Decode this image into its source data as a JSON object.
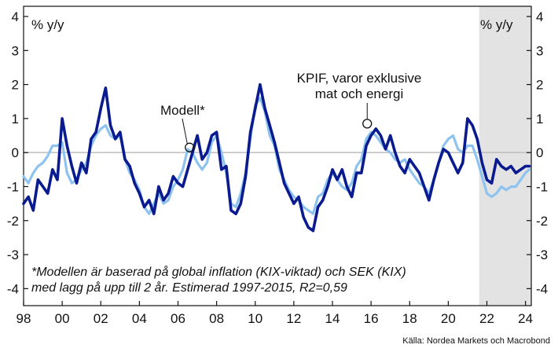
{
  "chart_data": {
    "type": "line",
    "title": "",
    "xlabel": "",
    "ylabel_left": "% y/y",
    "ylabel_right": "% y/y",
    "xlim": [
      1998,
      2024.3
    ],
    "ylim": [
      -4.5,
      4.3
    ],
    "x_ticks": [
      1998,
      2000,
      2002,
      2004,
      2006,
      2008,
      2010,
      2012,
      2014,
      2016,
      2018,
      2020,
      2022,
      2024
    ],
    "x_tick_labels": [
      "98",
      "00",
      "02",
      "04",
      "06",
      "08",
      "10",
      "12",
      "14",
      "16",
      "18",
      "20",
      "22",
      "24"
    ],
    "y_ticks": [
      4,
      3,
      2,
      1,
      0,
      -1,
      -2,
      -3,
      -4
    ],
    "y_tick_labels": [
      "4",
      "3",
      "2",
      "1",
      "0",
      "-1",
      "-2",
      "-3",
      "-4"
    ],
    "forecast_shade": [
      2021.6,
      2024.3
    ],
    "grid": false,
    "series": [
      {
        "name": "KPIF, varor exklusive mat och energi",
        "color": "#0a1a8f",
        "x": [
          1998.0,
          1998.25,
          1998.5,
          1998.75,
          1999.0,
          1999.25,
          1999.5,
          1999.75,
          2000.0,
          2000.25,
          2000.5,
          2000.75,
          2001.0,
          2001.25,
          2001.5,
          2001.75,
          2002.0,
          2002.25,
          2002.5,
          2002.75,
          2003.0,
          2003.25,
          2003.5,
          2003.75,
          2004.0,
          2004.25,
          2004.5,
          2004.75,
          2005.0,
          2005.25,
          2005.5,
          2005.75,
          2006.0,
          2006.25,
          2006.5,
          2006.75,
          2007.0,
          2007.25,
          2007.5,
          2007.75,
          2008.0,
          2008.25,
          2008.5,
          2008.75,
          2009.0,
          2009.25,
          2009.5,
          2009.75,
          2010.0,
          2010.25,
          2010.5,
          2010.75,
          2011.0,
          2011.25,
          2011.5,
          2011.75,
          2012.0,
          2012.25,
          2012.5,
          2012.75,
          2013.0,
          2013.25,
          2013.5,
          2013.75,
          2014.0,
          2014.25,
          2014.5,
          2014.75,
          2015.0,
          2015.25,
          2015.5,
          2015.75,
          2016.0,
          2016.25,
          2016.5,
          2016.75,
          2017.0,
          2017.25,
          2017.5,
          2017.75,
          2018.0,
          2018.25,
          2018.5,
          2018.75,
          2019.0,
          2019.25,
          2019.5,
          2019.75,
          2020.0,
          2020.25,
          2020.5,
          2020.75,
          2021.0,
          2021.25,
          2021.5,
          2021.75,
          2022.0,
          2022.25,
          2022.5,
          2022.75,
          2023.0,
          2023.25,
          2023.5,
          2023.75,
          2024.0,
          2024.2
        ],
        "values": [
          -1.5,
          -1.3,
          -1.7,
          -0.8,
          -1.0,
          -1.2,
          -0.5,
          -0.8,
          1.0,
          0.2,
          -0.4,
          -0.9,
          -0.3,
          -0.6,
          0.4,
          0.6,
          1.3,
          1.9,
          0.8,
          0.4,
          0.6,
          -0.2,
          -0.4,
          -0.9,
          -1.2,
          -1.6,
          -1.4,
          -1.8,
          -1.0,
          -1.4,
          -1.2,
          -0.7,
          -0.9,
          -1.0,
          -0.5,
          0.0,
          0.5,
          -0.2,
          0.0,
          0.5,
          0.6,
          -0.5,
          -0.4,
          -1.7,
          -1.8,
          -1.5,
          -0.7,
          0.6,
          1.3,
          2.0,
          1.3,
          0.8,
          0.3,
          -0.3,
          -0.9,
          -1.2,
          -1.5,
          -1.3,
          -1.9,
          -2.2,
          -2.3,
          -1.6,
          -1.4,
          -1.0,
          -0.5,
          -0.8,
          -0.5,
          -1.0,
          -1.3,
          -0.6,
          -0.6,
          0.2,
          0.5,
          0.7,
          0.5,
          0.1,
          0.5,
          0.0,
          -0.4,
          -0.6,
          -0.2,
          -0.4,
          -0.6,
          -1.0,
          -1.4,
          -0.8,
          -0.3,
          0.1,
          0.0,
          -0.3,
          -0.6,
          -0.3,
          1.0,
          0.8,
          0.4,
          -0.3,
          -0.8,
          -0.9,
          -0.2,
          -0.4,
          -0.5,
          -0.4,
          -0.6,
          -0.5,
          -0.4,
          -0.4
        ]
      },
      {
        "name": "Modell*",
        "color": "#8ec3ef",
        "x": [
          1998.0,
          1998.25,
          1998.5,
          1998.75,
          1999.0,
          1999.25,
          1999.5,
          1999.75,
          2000.0,
          2000.25,
          2000.5,
          2000.75,
          2001.0,
          2001.25,
          2001.5,
          2001.75,
          2002.0,
          2002.25,
          2002.5,
          2002.75,
          2003.0,
          2003.25,
          2003.5,
          2003.75,
          2004.0,
          2004.25,
          2004.5,
          2004.75,
          2005.0,
          2005.25,
          2005.5,
          2005.75,
          2006.0,
          2006.25,
          2006.5,
          2006.75,
          2007.0,
          2007.25,
          2007.5,
          2007.75,
          2008.0,
          2008.25,
          2008.5,
          2008.75,
          2009.0,
          2009.25,
          2009.5,
          2009.75,
          2010.0,
          2010.25,
          2010.5,
          2010.75,
          2011.0,
          2011.25,
          2011.5,
          2011.75,
          2012.0,
          2012.25,
          2012.5,
          2012.75,
          2013.0,
          2013.25,
          2013.5,
          2013.75,
          2014.0,
          2014.25,
          2014.5,
          2014.75,
          2015.0,
          2015.25,
          2015.5,
          2015.75,
          2016.0,
          2016.25,
          2016.5,
          2016.75,
          2017.0,
          2017.25,
          2017.5,
          2017.75,
          2018.0,
          2018.25,
          2018.5,
          2018.75,
          2019.0,
          2019.25,
          2019.5,
          2019.75,
          2020.0,
          2020.25,
          2020.5,
          2020.75,
          2021.0,
          2021.25,
          2021.5,
          2021.75,
          2022.0,
          2022.25,
          2022.5,
          2022.75,
          2023.0,
          2023.25,
          2023.5,
          2023.75,
          2024.0,
          2024.2
        ],
        "values": [
          -0.7,
          -0.9,
          -0.6,
          -0.4,
          -0.3,
          -0.1,
          0.2,
          0.2,
          0.3,
          -0.6,
          -0.9,
          -0.8,
          -0.5,
          -0.3,
          0.2,
          0.5,
          0.7,
          0.8,
          0.5,
          0.4,
          0.5,
          -0.2,
          -0.6,
          -0.8,
          -1.1,
          -1.6,
          -1.8,
          -1.5,
          -1.2,
          -1.5,
          -1.4,
          -1.0,
          -0.8,
          -0.5,
          0.1,
          0.0,
          -0.3,
          -0.5,
          -0.3,
          0.3,
          0.5,
          0.0,
          -0.6,
          -1.5,
          -1.6,
          -1.2,
          -0.6,
          0.4,
          1.4,
          1.6,
          1.2,
          0.5,
          0.2,
          -0.5,
          -0.8,
          -1.1,
          -1.3,
          -1.4,
          -1.6,
          -1.7,
          -1.8,
          -1.3,
          -1.2,
          -0.8,
          -0.6,
          -0.8,
          -1.0,
          -1.1,
          -0.9,
          -0.4,
          -0.2,
          0.4,
          0.6,
          0.5,
          0.3,
          0.1,
          0.0,
          -0.2,
          -0.3,
          -0.2,
          -0.5,
          -0.7,
          -0.9,
          -1.0,
          -1.2,
          -0.8,
          -0.3,
          0.2,
          0.4,
          0.5,
          0.1,
          0.0,
          0.2,
          0.2,
          -0.2,
          -0.7,
          -1.2,
          -1.3,
          -1.2,
          -1.0,
          -1.1,
          -1.0,
          -1.0,
          -0.8,
          -0.6,
          -0.5
        ]
      }
    ],
    "annotations": [
      {
        "text_lines": [
          "Modell*"
        ],
        "x": 2006.6,
        "y": 0.15,
        "series": "Modell*"
      },
      {
        "text_lines": [
          "KPIF, varor exklusive",
          "mat och energi"
        ],
        "x": 2015.8,
        "y": 0.85,
        "series": "KPIF, varor exklusive mat och energi"
      }
    ],
    "footnote_lines": [
      "*Modellen är baserad på global inflation (KIX-viktad) och SEK (KIX)",
      "med lagg på upp till 2 år. Estimerad 1997-2015, R2=0,59"
    ],
    "source": "Källa: Nordea Markets och Macrobond"
  }
}
